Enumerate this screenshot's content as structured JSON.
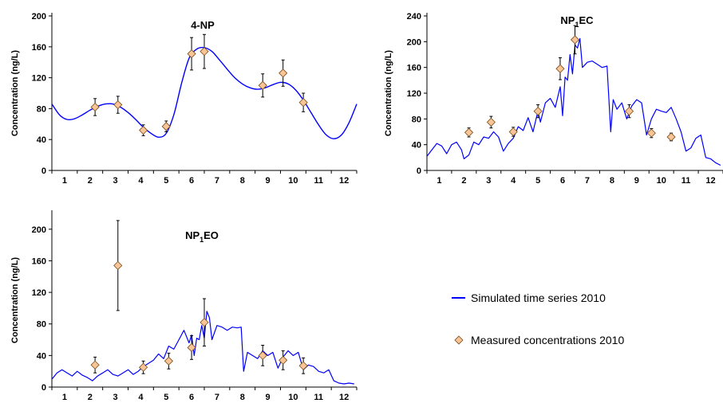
{
  "legend": {
    "line_label": "Simulated time series 2010",
    "marker_label": "Measured concentrations 2010"
  },
  "colors": {
    "line": "#0000ff",
    "marker_fill": "#f7c596",
    "marker_stroke": "#7a4a1a",
    "error_bar": "#000000"
  },
  "chart_data": [
    {
      "type": "line",
      "title_main": "4-NP",
      "title_sub": "",
      "title_tail": "",
      "ylabel": "Concentration (ng/L)",
      "xlabel": "",
      "xlim": [
        0.5,
        12.5
      ],
      "ylim": [
        0,
        200
      ],
      "yticks": [
        0,
        40,
        80,
        120,
        160,
        200
      ],
      "xticks": [
        1,
        2,
        3,
        4,
        5,
        6,
        7,
        8,
        9,
        10,
        11,
        12
      ],
      "smooth": true,
      "series": [
        {
          "kind": "simulated",
          "x": [
            0.5,
            0.8,
            1.1,
            1.4,
            1.7,
            2.0,
            2.3,
            2.6,
            2.9,
            3.2,
            3.5,
            3.8,
            4.1,
            4.4,
            4.7,
            5.0,
            5.3,
            5.6,
            5.9,
            6.2,
            6.5,
            6.8,
            7.1,
            7.4,
            7.7,
            8.0,
            8.3,
            8.6,
            8.9,
            9.2,
            9.5,
            9.8,
            10.1,
            10.4,
            10.7,
            11.0,
            11.3,
            11.6,
            11.9,
            12.2,
            12.5
          ],
          "y": [
            86,
            72,
            66,
            67,
            72,
            78,
            83,
            86,
            86,
            82,
            75,
            66,
            56,
            48,
            43,
            48,
            72,
            112,
            145,
            157,
            159,
            154,
            143,
            131,
            120,
            112,
            107,
            105,
            107,
            111,
            114,
            112,
            104,
            91,
            75,
            59,
            46,
            41,
            46,
            62,
            86
          ]
        },
        {
          "kind": "measured",
          "x": [
            2.2,
            3.1,
            4.1,
            5.0,
            6.0,
            6.5,
            8.8,
            9.6,
            10.4
          ],
          "y": [
            82,
            85,
            52,
            57,
            151,
            154,
            110,
            126,
            88
          ],
          "err": [
            11,
            11,
            7,
            7,
            21,
            22,
            15,
            17,
            12
          ]
        }
      ]
    },
    {
      "type": "line",
      "title_main": "NP",
      "title_sub": "1",
      "title_tail": "EC",
      "ylabel": "Concentration (ng/L)",
      "xlabel": "",
      "xlim": [
        0.5,
        12.5
      ],
      "ylim": [
        0,
        240
      ],
      "yticks": [
        0,
        40,
        80,
        120,
        160,
        200,
        240
      ],
      "xticks": [
        1,
        2,
        3,
        4,
        5,
        6,
        7,
        8,
        9,
        10,
        11,
        12
      ],
      "smooth": false,
      "series": [
        {
          "kind": "simulated",
          "x": [
            0.5,
            0.7,
            0.9,
            1.1,
            1.3,
            1.5,
            1.7,
            1.9,
            2.0,
            2.2,
            2.4,
            2.6,
            2.8,
            3.0,
            3.2,
            3.4,
            3.6,
            3.8,
            4.0,
            4.2,
            4.4,
            4.6,
            4.8,
            5.0,
            5.1,
            5.3,
            5.5,
            5.7,
            5.9,
            6.0,
            6.1,
            6.2,
            6.3,
            6.4,
            6.5,
            6.6,
            6.7,
            6.8,
            7.0,
            7.2,
            7.4,
            7.6,
            7.8,
            7.95,
            8.05,
            8.2,
            8.4,
            8.6,
            8.8,
            9.0,
            9.2,
            9.4,
            9.6,
            9.8,
            10.0,
            10.2,
            10.4,
            10.6,
            10.8,
            11.0,
            11.2,
            11.4,
            11.6,
            11.8,
            12.0,
            12.2,
            12.4
          ],
          "y": [
            22,
            32,
            42,
            38,
            26,
            40,
            44,
            32,
            18,
            24,
            44,
            40,
            52,
            50,
            60,
            52,
            30,
            42,
            50,
            68,
            62,
            82,
            60,
            92,
            75,
            105,
            112,
            98,
            130,
            85,
            145,
            140,
            180,
            150,
            195,
            190,
            205,
            160,
            168,
            170,
            165,
            160,
            162,
            60,
            110,
            95,
            105,
            80,
            100,
            110,
            105,
            55,
            80,
            95,
            92,
            90,
            98,
            80,
            60,
            30,
            35,
            50,
            55,
            20,
            18,
            12,
            8
          ]
        },
        {
          "kind": "measured",
          "x": [
            2.2,
            3.1,
            4.0,
            5.0,
            5.9,
            6.5,
            8.7,
            9.6,
            10.4
          ],
          "y": [
            59,
            75,
            60,
            92,
            158,
            203,
            92,
            58,
            52
          ],
          "err": [
            7,
            9,
            7,
            10,
            17,
            22,
            10,
            7,
            6
          ]
        }
      ]
    },
    {
      "type": "line",
      "title_main": "NP",
      "title_sub": "1",
      "title_tail": "EO",
      "ylabel": "Concentration (ng/L)",
      "xlabel": "",
      "xlim": [
        0.5,
        12.5
      ],
      "ylim": [
        0,
        220
      ],
      "yticks": [
        0,
        40,
        80,
        120,
        160,
        200
      ],
      "xticks": [
        1,
        2,
        3,
        4,
        5,
        6,
        7,
        8,
        9,
        10,
        11,
        12
      ],
      "smooth": false,
      "series": [
        {
          "kind": "simulated",
          "x": [
            0.5,
            0.7,
            0.9,
            1.1,
            1.3,
            1.5,
            1.7,
            1.9,
            2.1,
            2.3,
            2.5,
            2.7,
            2.9,
            3.1,
            3.3,
            3.5,
            3.7,
            3.9,
            4.1,
            4.3,
            4.5,
            4.7,
            4.9,
            5.1,
            5.3,
            5.5,
            5.7,
            5.9,
            6.0,
            6.1,
            6.2,
            6.3,
            6.4,
            6.5,
            6.6,
            6.7,
            6.8,
            7.0,
            7.2,
            7.4,
            7.6,
            7.8,
            7.95,
            8.05,
            8.2,
            8.4,
            8.6,
            8.8,
            9.0,
            9.2,
            9.4,
            9.6,
            9.8,
            10.0,
            10.2,
            10.4,
            10.6,
            10.8,
            11.0,
            11.2,
            11.4,
            11.6,
            11.8,
            12.0,
            12.2,
            12.4
          ],
          "y": [
            10,
            18,
            22,
            18,
            14,
            20,
            15,
            12,
            8,
            14,
            18,
            22,
            16,
            14,
            18,
            22,
            16,
            20,
            26,
            30,
            34,
            42,
            36,
            52,
            48,
            60,
            72,
            56,
            66,
            40,
            62,
            60,
            78,
            62,
            96,
            88,
            60,
            78,
            76,
            72,
            76,
            75,
            76,
            20,
            44,
            40,
            36,
            46,
            40,
            44,
            24,
            38,
            46,
            40,
            44,
            22,
            28,
            26,
            20,
            18,
            22,
            8,
            5,
            4,
            5,
            4
          ]
        },
        {
          "kind": "measured",
          "x": [
            2.2,
            3.1,
            4.1,
            5.1,
            6.0,
            6.5,
            8.8,
            9.6,
            10.4
          ],
          "y": [
            28,
            154,
            25,
            33,
            50,
            82,
            40,
            34,
            27
          ],
          "err": [
            10,
            57,
            8,
            10,
            15,
            30,
            13,
            12,
            10
          ]
        }
      ]
    }
  ]
}
